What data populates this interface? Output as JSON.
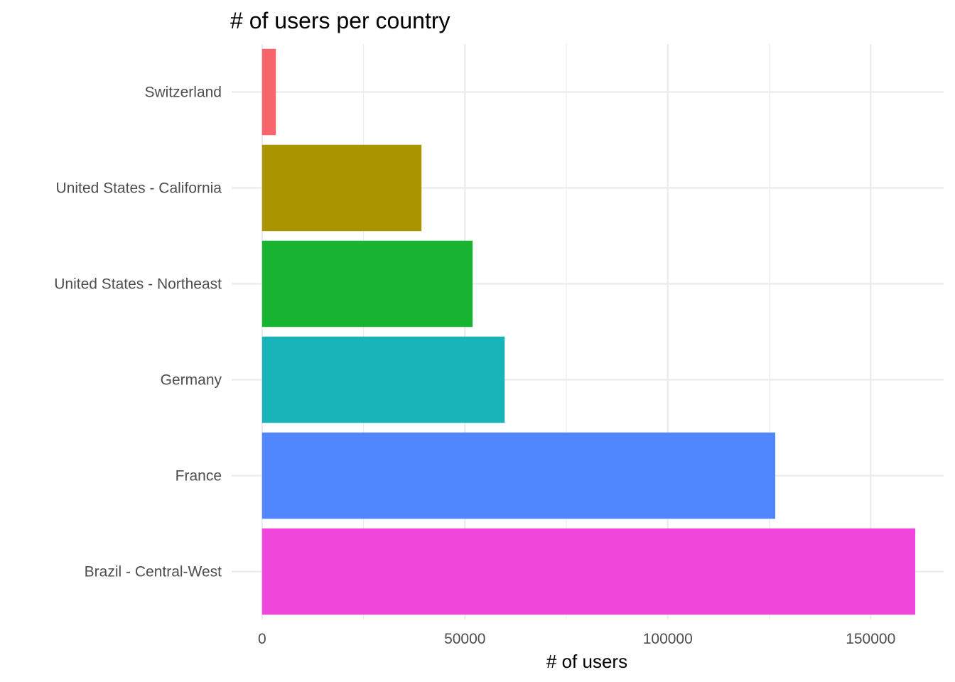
{
  "chart_data": {
    "type": "bar",
    "orientation": "horizontal",
    "title": "# of users per country",
    "xlabel": "# of users",
    "ylabel": "",
    "categories": [
      "Brazil - Central-West",
      "France",
      "Germany",
      "United States - Northeast",
      "United States - California",
      "Switzerland"
    ],
    "values": [
      161000,
      126500,
      59800,
      51900,
      39300,
      3400
    ],
    "colors": [
      "#F046DC",
      "#5087FF",
      "#19B4B9",
      "#19B432",
      "#AA9400",
      "#F8646C"
    ],
    "xlim": [
      -7500,
      168000
    ],
    "xticks": [
      0,
      50000,
      100000,
      150000
    ],
    "xtick_labels": [
      "0",
      "50000",
      "100000",
      "150000"
    ],
    "grid": true,
    "legend": "none"
  }
}
